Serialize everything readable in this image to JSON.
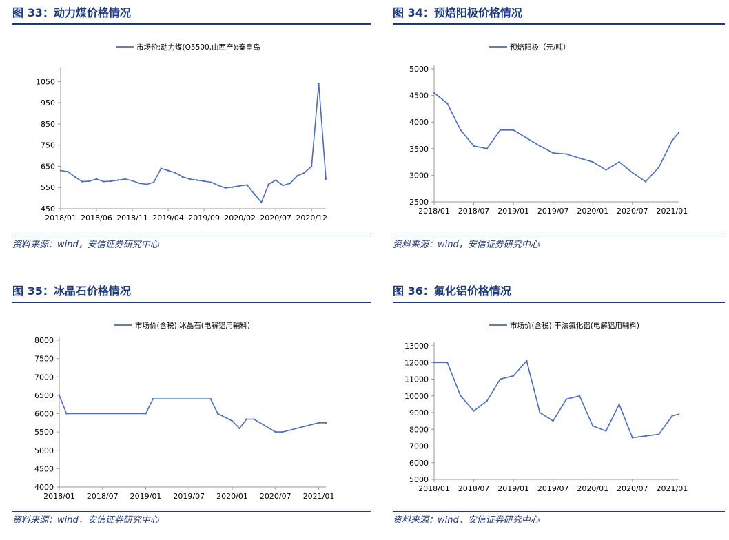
{
  "line_color": "#4a6db5",
  "chart_data": [
    {
      "type": "line",
      "title": "图 33：动力煤价格情况",
      "series": [
        {
          "name": "市场价:动力煤(Q5500,山西产):秦皇岛",
          "x": [
            "2018/01",
            "2018/02",
            "2018/03",
            "2018/04",
            "2018/05",
            "2018/06",
            "2018/07",
            "2018/08",
            "2018/09",
            "2018/10",
            "2018/11",
            "2018/12",
            "2019/01",
            "2019/02",
            "2019/03",
            "2019/04",
            "2019/05",
            "2019/06",
            "2019/07",
            "2019/08",
            "2019/09",
            "2019/10",
            "2019/11",
            "2019/12",
            "2020/01",
            "2020/02",
            "2020/03",
            "2020/04",
            "2020/05",
            "2020/06",
            "2020/07",
            "2020/08",
            "2020/09",
            "2020/10",
            "2020/11",
            "2020/12",
            "2021/01",
            "2021/02"
          ],
          "values": [
            630,
            625,
            600,
            578,
            580,
            590,
            578,
            580,
            585,
            590,
            582,
            570,
            565,
            575,
            640,
            630,
            620,
            600,
            590,
            585,
            580,
            575,
            560,
            548,
            552,
            558,
            562,
            520,
            480,
            565,
            585,
            560,
            570,
            605,
            620,
            650,
            1040,
            590
          ]
        }
      ],
      "xlabel": "",
      "ylabel": "",
      "ylim": [
        450,
        1100
      ],
      "yticks": [
        "450",
        "550",
        "650",
        "750",
        "850",
        "950",
        "1050"
      ],
      "xticks": [
        "2018/01",
        "2018/06",
        "2018/11",
        "2019/04",
        "2019/09",
        "2020/02",
        "2020/07",
        "2020/12"
      ],
      "grid": false,
      "legend": "top",
      "source": "资料来源：wind，安信证券研究中心"
    },
    {
      "type": "line",
      "title": "图 34：预焙阳极价格情况",
      "series": [
        {
          "name": "预焙阳极（元/吨）",
          "x": [
            "2018/01",
            "2018/03",
            "2018/05",
            "2018/07",
            "2018/09",
            "2018/11",
            "2019/01",
            "2019/03",
            "2019/05",
            "2019/07",
            "2019/09",
            "2019/11",
            "2020/01",
            "2020/03",
            "2020/05",
            "2020/07",
            "2020/09",
            "2020/11",
            "2021/01",
            "2021/02"
          ],
          "values": [
            4550,
            4350,
            3850,
            3550,
            3500,
            3850,
            3850,
            3700,
            3550,
            3420,
            3400,
            3320,
            3250,
            3100,
            3250,
            3050,
            2880,
            3150,
            3650,
            3800
          ]
        }
      ],
      "xlabel": "",
      "ylabel": "",
      "ylim": [
        2500,
        5000
      ],
      "yticks": [
        "2500",
        "3000",
        "3500",
        "4000",
        "4500",
        "5000"
      ],
      "xticks": [
        "2018/01",
        "2018/07",
        "2019/01",
        "2019/07",
        "2020/01",
        "2020/07",
        "2021/01"
      ],
      "grid": false,
      "legend": "top",
      "source": "资料来源：wind，安信证券研究中心"
    },
    {
      "type": "line",
      "title": "图 35：冰晶石价格情况",
      "series": [
        {
          "name": "市场价(含税):冰晶石(电解铝用辅料)",
          "x": [
            "2018/01",
            "2018/02",
            "2019/01",
            "2019/02",
            "2019/10",
            "2019/11",
            "2020/01",
            "2020/02",
            "2020/03",
            "2020/04",
            "2020/07",
            "2020/08",
            "2021/01",
            "2021/02"
          ],
          "values": [
            6500,
            6000,
            6000,
            6400,
            6400,
            6000,
            5800,
            5600,
            5850,
            5850,
            5500,
            5500,
            5750,
            5750
          ]
        }
      ],
      "xlabel": "",
      "ylabel": "",
      "ylim": [
        4000,
        8000
      ],
      "yticks": [
        "4000",
        "4500",
        "5000",
        "5500",
        "6000",
        "6500",
        "7000",
        "7500",
        "8000"
      ],
      "xticks": [
        "2018/01",
        "2018/07",
        "2019/01",
        "2019/07",
        "2020/01",
        "2020/07",
        "2021/01"
      ],
      "grid": false,
      "legend": "top",
      "source": "资料来源：wind，安信证券研究中心"
    },
    {
      "type": "line",
      "title": "图 36：氟化铝价格情况",
      "series": [
        {
          "name": "市场价(含税):干法氟化铝(电解铝用辅料)",
          "x": [
            "2018/01",
            "2018/03",
            "2018/05",
            "2018/07",
            "2018/09",
            "2018/11",
            "2019/01",
            "2019/03",
            "2019/05",
            "2019/07",
            "2019/09",
            "2019/11",
            "2020/01",
            "2020/03",
            "2020/05",
            "2020/07",
            "2020/09",
            "2020/11",
            "2021/01",
            "2021/02"
          ],
          "values": [
            12000,
            12000,
            10000,
            9100,
            9700,
            11000,
            11200,
            12100,
            9000,
            8500,
            9800,
            10000,
            8200,
            7900,
            9500,
            7500,
            7600,
            7700,
            8800,
            8900
          ]
        }
      ],
      "xlabel": "",
      "ylabel": "",
      "ylim": [
        5000,
        13000
      ],
      "yticks": [
        "5000",
        "6000",
        "7000",
        "8000",
        "9000",
        "10000",
        "11000",
        "12000",
        "13000"
      ],
      "xticks": [
        "2018/01",
        "2018/07",
        "2019/01",
        "2019/07",
        "2020/01",
        "2020/07",
        "2021/01"
      ],
      "grid": false,
      "legend": "top",
      "source": "资料来源：wind，安信证券研究中心"
    }
  ]
}
